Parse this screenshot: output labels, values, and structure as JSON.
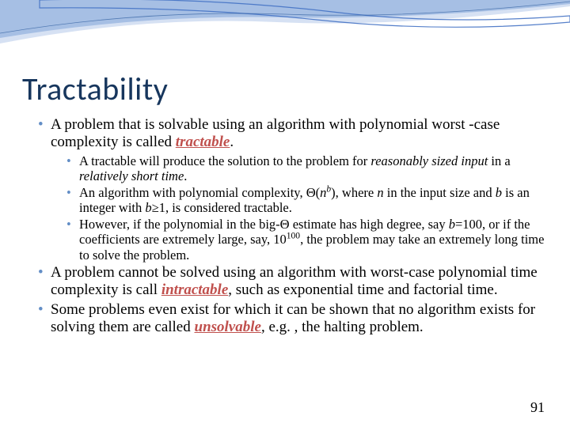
{
  "slide": {
    "title": "Tractability",
    "pageNumber": "91",
    "wave": {
      "color1": "#4472c4",
      "color2": "#a6bfe4",
      "color3": "#d6e1f3",
      "background": "#ffffff"
    },
    "titleColor": "#17365d",
    "bulletColor": "#638ec6",
    "termColor": "#c0504d",
    "bullets": [
      {
        "html": "A problem that is solvable using an algorithm with polynomial worst -case complexity is called <span class='term-red'>tractable</span>.",
        "sub": [
          {
            "html": "A tractable will produce the solution to the problem for <span class='ital'>reasonably sized input</span> in a <span class='ital'>relatively short time</span>."
          },
          {
            "html": "An algorithm with polynomial complexity, Θ(<span class='ital'>n<sup>b</sup></span>), where <span class='ital'>n</span> in the input size and <span class='ital'>b</span> is an integer with <span class='ital'>b</span>≥1, is considered tractable."
          },
          {
            "html": "However, if the polynomial in the big-Θ estimate has high degree, say <span class='ital'>b</span>=100, or if the coefficients are extremely large, say, 10<sup>100</sup>, the problem may take an extremely long time to solve the problem."
          }
        ]
      },
      {
        "html": "A problem cannot be solved using an algorithm with worst-case polynomial time complexity is call <span class='term-red'>intractable</span>, such as exponential time and factorial time."
      },
      {
        "html": "Some problems even exist for which it can be shown that no algorithm exists for solving them are called <span class='term-red'>unsolvable</span>, e.g. , the halting problem."
      }
    ]
  }
}
